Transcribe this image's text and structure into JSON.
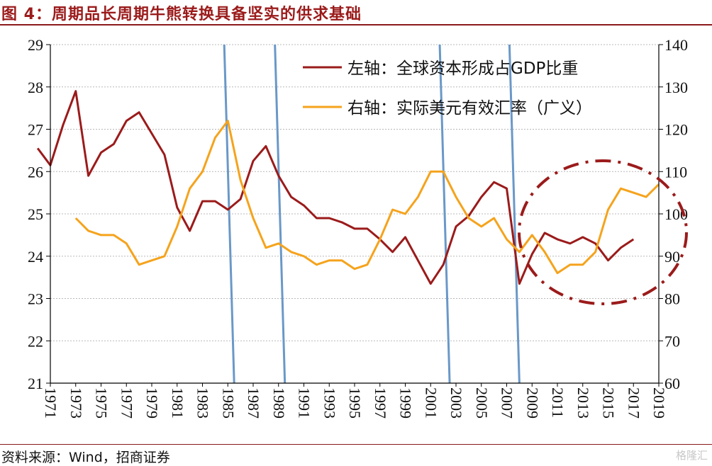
{
  "title": "图 4：周期品长周期牛熊转换具备坚实的供求基础",
  "source": "资料来源：Wind，招商证券",
  "watermark": "格隆汇",
  "chart_data": {
    "type": "line",
    "title": "图 4：周期品长周期牛熊转换具备坚实的供求基础",
    "x_ticks": [
      1971,
      1973,
      1975,
      1977,
      1979,
      1981,
      1983,
      1985,
      1987,
      1989,
      1991,
      1993,
      1995,
      1997,
      1999,
      2001,
      2003,
      2005,
      2007,
      2009,
      2011,
      2013,
      2015,
      2017,
      2019
    ],
    "xlim": [
      1971,
      2019
    ],
    "y_left": {
      "lim": [
        21,
        29
      ],
      "ticks": [
        21,
        22,
        23,
        24,
        25,
        26,
        27,
        28,
        29
      ]
    },
    "y_right": {
      "lim": [
        60,
        140
      ],
      "ticks": [
        60,
        70,
        80,
        90,
        100,
        110,
        120,
        130,
        140
      ]
    },
    "grid": true,
    "legend_position": "top-right",
    "series": [
      {
        "name": "左轴：全球资本形成占GDP比重",
        "axis": "left",
        "color": "#9b1b1b",
        "x": [
          1970,
          1971,
          1972,
          1973,
          1974,
          1975,
          1976,
          1977,
          1978,
          1979,
          1980,
          1981,
          1982,
          1983,
          1984,
          1985,
          1986,
          1987,
          1988,
          1989,
          1990,
          1991,
          1992,
          1993,
          1994,
          1995,
          1996,
          1997,
          1998,
          1999,
          2000,
          2001,
          2002,
          2003,
          2004,
          2005,
          2006,
          2007,
          2008,
          2009,
          2010,
          2011,
          2012,
          2013,
          2014,
          2015,
          2016,
          2017,
          2018
        ],
        "y": [
          26.55,
          26.15,
          27.1,
          27.9,
          25.9,
          26.45,
          26.65,
          27.2,
          27.4,
          26.9,
          26.4,
          25.15,
          24.6,
          25.3,
          25.3,
          25.1,
          25.35,
          26.25,
          26.6,
          25.9,
          25.4,
          25.2,
          24.9,
          24.9,
          24.8,
          24.65,
          24.65,
          24.4,
          24.1,
          24.45,
          23.9,
          23.35,
          23.8,
          24.7,
          24.95,
          25.4,
          25.75,
          25.6,
          23.35,
          24.05,
          24.55,
          24.4,
          24.3,
          24.45,
          24.3,
          23.9,
          24.2,
          24.4,
          null
        ]
      },
      {
        "name": "右轴：实际美元有效汇率（广义）",
        "axis": "right",
        "color": "#f5a31c",
        "x": [
          1973,
          1974,
          1975,
          1976,
          1977,
          1978,
          1979,
          1980,
          1981,
          1982,
          1983,
          1984,
          1985,
          1986,
          1987,
          1988,
          1989,
          1990,
          1991,
          1992,
          1993,
          1994,
          1995,
          1996,
          1997,
          1998,
          1999,
          2000,
          2001,
          2002,
          2003,
          2004,
          2005,
          2006,
          2007,
          2008,
          2009,
          2010,
          2011,
          2012,
          2013,
          2014,
          2015,
          2016,
          2017,
          2018,
          2019
        ],
        "y": [
          99,
          96,
          95,
          95,
          93,
          88,
          89,
          90,
          97,
          106,
          110,
          118,
          122,
          108,
          99,
          92,
          93,
          91,
          90,
          88,
          89,
          89,
          87,
          88,
          94,
          101,
          100,
          104,
          110,
          110,
          104,
          99,
          97,
          99,
          94,
          91,
          95,
          91,
          86,
          88,
          88,
          91,
          101,
          106,
          105,
          104,
          107
        ]
      }
    ],
    "vertical_markers": [
      1985.5,
      1989.5,
      2002.5,
      2008.0
    ],
    "annotations": [
      "dash-dot ellipse highlighting 2009–2019"
    ]
  }
}
